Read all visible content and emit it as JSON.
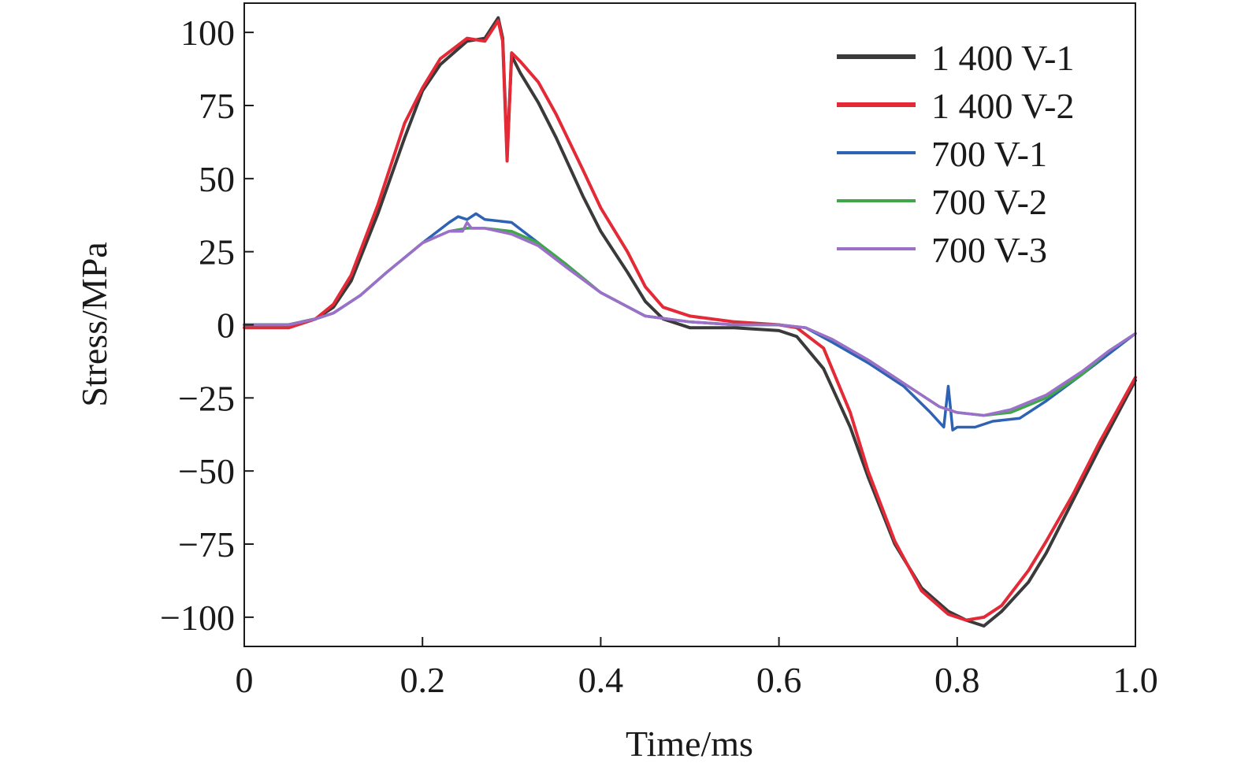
{
  "chart_data": {
    "type": "line",
    "title": "",
    "xlabel": "Time/ms",
    "ylabel": "Stress/MPa",
    "xlim": [
      0,
      1.0
    ],
    "ylim": [
      -110,
      110
    ],
    "xticks": [
      0,
      0.2,
      0.4,
      0.6,
      0.8,
      1.0
    ],
    "xtick_labels": [
      "0",
      "0.2",
      "0.4",
      "0.6",
      "0.8",
      "1.0"
    ],
    "yticks": [
      100,
      75,
      50,
      25,
      0,
      -25,
      -50,
      -75,
      -100
    ],
    "ytick_labels": [
      "100",
      "75",
      "50",
      "25",
      "0",
      "−25",
      "−50",
      "−75",
      "−100"
    ],
    "grid": false,
    "legend_position": "top-right",
    "series": [
      {
        "name": "1 400 V-1",
        "color": "#3a3a3a",
        "x": [
          0,
          0.05,
          0.08,
          0.1,
          0.12,
          0.15,
          0.18,
          0.2,
          0.22,
          0.25,
          0.27,
          0.285,
          0.29,
          0.295,
          0.3,
          0.31,
          0.33,
          0.35,
          0.38,
          0.4,
          0.43,
          0.45,
          0.47,
          0.5,
          0.55,
          0.6,
          0.62,
          0.65,
          0.68,
          0.7,
          0.73,
          0.76,
          0.79,
          0.81,
          0.83,
          0.85,
          0.88,
          0.9,
          0.93,
          0.96,
          1.0
        ],
        "y": [
          0,
          0,
          2,
          6,
          15,
          38,
          64,
          80,
          89,
          97,
          98,
          105,
          98,
          58,
          92,
          86,
          76,
          64,
          44,
          32,
          18,
          8,
          2,
          -1,
          -1,
          -2,
          -4,
          -15,
          -35,
          -52,
          -75,
          -90,
          -98,
          -101,
          -103,
          -98,
          -88,
          -78,
          -60,
          -42,
          -19
        ]
      },
      {
        "name": "1 400 V-2",
        "color": "#e32a36",
        "x": [
          0,
          0.05,
          0.08,
          0.1,
          0.12,
          0.15,
          0.18,
          0.2,
          0.22,
          0.25,
          0.27,
          0.285,
          0.29,
          0.295,
          0.3,
          0.31,
          0.33,
          0.35,
          0.38,
          0.4,
          0.43,
          0.45,
          0.47,
          0.5,
          0.55,
          0.6,
          0.62,
          0.65,
          0.68,
          0.7,
          0.73,
          0.76,
          0.79,
          0.81,
          0.83,
          0.85,
          0.88,
          0.9,
          0.93,
          0.96,
          1.0
        ],
        "y": [
          -1,
          -1,
          2,
          7,
          17,
          41,
          69,
          81,
          91,
          98,
          97,
          104,
          97,
          56,
          93,
          90,
          83,
          72,
          53,
          40,
          25,
          13,
          6,
          3,
          1,
          0,
          -1,
          -8,
          -30,
          -50,
          -74,
          -91,
          -99,
          -101,
          -100,
          -96,
          -84,
          -74,
          -58,
          -40,
          -18
        ]
      },
      {
        "name": "700 V-1",
        "color": "#2d62b5",
        "x": [
          0,
          0.05,
          0.08,
          0.1,
          0.13,
          0.16,
          0.2,
          0.23,
          0.24,
          0.25,
          0.26,
          0.27,
          0.3,
          0.33,
          0.36,
          0.4,
          0.45,
          0.5,
          0.55,
          0.6,
          0.63,
          0.66,
          0.7,
          0.74,
          0.77,
          0.785,
          0.79,
          0.795,
          0.8,
          0.82,
          0.84,
          0.87,
          0.9,
          0.94,
          0.97,
          1.0
        ],
        "y": [
          0,
          0,
          2,
          4,
          10,
          18,
          28,
          35,
          37,
          36,
          38,
          36,
          35,
          28,
          20,
          11,
          3,
          1,
          0,
          0,
          -1,
          -6,
          -13,
          -21,
          -30,
          -35,
          -21,
          -36,
          -35,
          -35,
          -33,
          -32,
          -26,
          -17,
          -10,
          -3
        ]
      },
      {
        "name": "700 V-2",
        "color": "#3fa64a",
        "x": [
          0,
          0.05,
          0.08,
          0.1,
          0.13,
          0.16,
          0.2,
          0.23,
          0.25,
          0.27,
          0.3,
          0.33,
          0.36,
          0.4,
          0.45,
          0.5,
          0.55,
          0.6,
          0.63,
          0.66,
          0.7,
          0.74,
          0.78,
          0.8,
          0.83,
          0.86,
          0.9,
          0.94,
          0.97,
          1.0
        ],
        "y": [
          0,
          0,
          2,
          4,
          10,
          18,
          28,
          32,
          33,
          33,
          32,
          28,
          21,
          11,
          3,
          1,
          0,
          0,
          -1,
          -5,
          -12,
          -20,
          -28,
          -30,
          -31,
          -30,
          -25,
          -17,
          -9,
          -3
        ]
      },
      {
        "name": "700 V-3",
        "color": "#9b6fca",
        "x": [
          0,
          0.05,
          0.08,
          0.1,
          0.13,
          0.16,
          0.2,
          0.23,
          0.245,
          0.25,
          0.255,
          0.27,
          0.3,
          0.33,
          0.36,
          0.4,
          0.45,
          0.5,
          0.55,
          0.6,
          0.63,
          0.66,
          0.7,
          0.74,
          0.78,
          0.8,
          0.83,
          0.86,
          0.9,
          0.94,
          0.97,
          1.0
        ],
        "y": [
          0,
          0,
          2,
          4,
          10,
          18,
          28,
          32,
          32,
          35,
          33,
          33,
          31,
          27,
          20,
          11,
          3,
          1,
          0,
          0,
          -1,
          -5,
          -12,
          -20,
          -28,
          -30,
          -31,
          -29,
          -24,
          -16,
          -9,
          -3
        ]
      }
    ]
  }
}
